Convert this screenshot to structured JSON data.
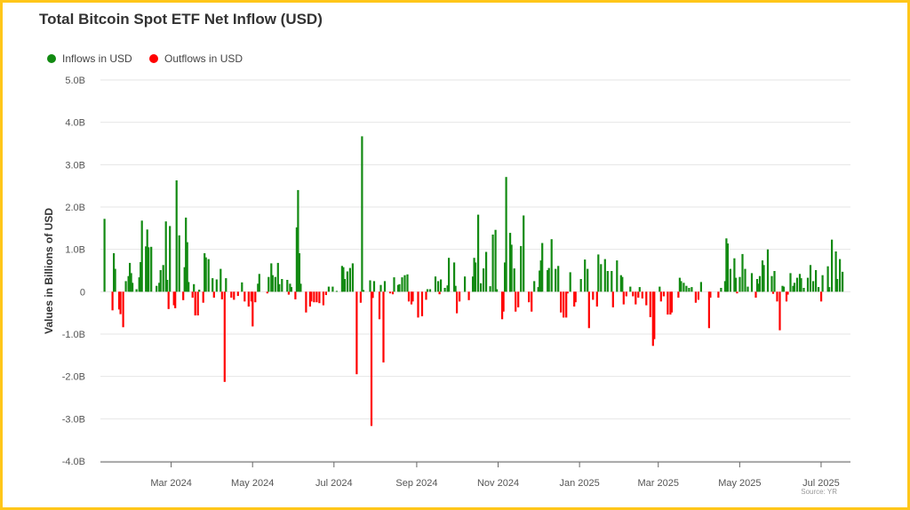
{
  "chart_data": {
    "type": "bar",
    "title": "Total Bitcoin Spot ETF Net Inflow (USD)",
    "xlabel": "",
    "ylabel": "Values in Billions of USD",
    "ylim": [
      -4,
      5
    ],
    "xlim": [
      "2024-01-08",
      "2025-07-23"
    ],
    "grid": true,
    "legend_placement": "top-left",
    "source": "Source: YR",
    "colors": {
      "inflow": "#128A12",
      "outflow": "#FF0000",
      "grid": "#e6e6e6",
      "border": "#FFC61A"
    },
    "legend": [
      {
        "label": "Inflows in USD",
        "color": "#128A12"
      },
      {
        "label": "Outflows in USD",
        "color": "#FF0000"
      }
    ],
    "y_ticks": [
      {
        "value": 5,
        "label": "5.0B"
      },
      {
        "value": 4,
        "label": "4.0B"
      },
      {
        "value": 3,
        "label": "3.0B"
      },
      {
        "value": 2,
        "label": "2.0B"
      },
      {
        "value": 1,
        "label": "1.0B"
      },
      {
        "value": 0,
        "label": "0"
      },
      {
        "value": -1,
        "label": "-1.0B"
      },
      {
        "value": -2,
        "label": "-2.0B"
      },
      {
        "value": -3,
        "label": "-3.0B"
      },
      {
        "value": -4,
        "label": "-4.0B"
      }
    ],
    "x_ticks": [
      {
        "date": "2024-03-01",
        "label": "Mar 2024"
      },
      {
        "date": "2024-05-01",
        "label": "May 2024"
      },
      {
        "date": "2024-07-01",
        "label": "Jul 2024"
      },
      {
        "date": "2024-09-01",
        "label": "Sep 2024"
      },
      {
        "date": "2024-11-01",
        "label": "Nov 2024"
      },
      {
        "date": "2025-01-01",
        "label": "Jan 2025"
      },
      {
        "date": "2025-03-01",
        "label": "Mar 2025"
      },
      {
        "date": "2025-05-01",
        "label": "May 2025"
      },
      {
        "date": "2025-07-01",
        "label": "Jul 2025"
      }
    ],
    "series_unit": "billion USD",
    "points": [
      [
        "2024-01-11",
        1.72
      ],
      [
        "2024-01-17",
        -0.44
      ],
      [
        "2024-01-18",
        0.91
      ],
      [
        "2024-01-19",
        0.54
      ],
      [
        "2024-01-22",
        -0.42
      ],
      [
        "2024-01-23",
        -0.53
      ],
      [
        "2024-01-25",
        -0.84
      ],
      [
        "2024-01-27",
        0.25
      ],
      [
        "2024-01-29",
        0.37
      ],
      [
        "2024-01-30",
        0.68
      ],
      [
        "2024-01-31",
        0.44
      ],
      [
        "2024-02-01",
        0.21
      ],
      [
        "2024-02-04",
        0.06
      ],
      [
        "2024-02-06",
        0.34
      ],
      [
        "2024-02-07",
        0.7
      ],
      [
        "2024-02-08",
        1.68
      ],
      [
        "2024-02-11",
        1.07
      ],
      [
        "2024-02-12",
        1.47
      ],
      [
        "2024-02-13",
        1.05
      ],
      [
        "2024-02-15",
        1.06
      ],
      [
        "2024-02-19",
        0.14
      ],
      [
        "2024-02-21",
        0.21
      ],
      [
        "2024-02-22",
        0.51
      ],
      [
        "2024-02-24",
        0.63
      ],
      [
        "2024-02-26",
        1.66
      ],
      [
        "2024-02-27",
        0.28
      ],
      [
        "2024-02-28",
        -0.41
      ],
      [
        "2024-02-29",
        1.55
      ],
      [
        "2024-03-03",
        -0.32
      ],
      [
        "2024-03-04",
        -0.39
      ],
      [
        "2024-03-05",
        2.63
      ],
      [
        "2024-03-07",
        1.33
      ],
      [
        "2024-03-10",
        -0.2
      ],
      [
        "2024-03-11",
        0.58
      ],
      [
        "2024-03-12",
        1.75
      ],
      [
        "2024-03-13",
        1.17
      ],
      [
        "2024-03-14",
        0.23
      ],
      [
        "2024-03-17",
        -0.14
      ],
      [
        "2024-03-18",
        0.18
      ],
      [
        "2024-03-19",
        -0.56
      ],
      [
        "2024-03-21",
        -0.56
      ],
      [
        "2024-03-22",
        0.05
      ],
      [
        "2024-03-25",
        -0.26
      ],
      [
        "2024-03-26",
        0.91
      ],
      [
        "2024-03-27",
        0.81
      ],
      [
        "2024-03-29",
        0.77
      ],
      [
        "2024-04-01",
        0.32
      ],
      [
        "2024-04-02",
        -0.14
      ],
      [
        "2024-04-04",
        0.29
      ],
      [
        "2024-04-07",
        0.54
      ],
      [
        "2024-04-08",
        -0.18
      ],
      [
        "2024-04-10",
        -2.13
      ],
      [
        "2024-04-11",
        0.32
      ],
      [
        "2024-04-15",
        -0.14
      ],
      [
        "2024-04-17",
        -0.19
      ],
      [
        "2024-04-20",
        -0.1
      ],
      [
        "2024-04-23",
        0.22
      ],
      [
        "2024-04-25",
        -0.23
      ],
      [
        "2024-04-28",
        -0.35
      ],
      [
        "2024-04-30",
        -0.23
      ],
      [
        "2024-05-01",
        -0.82
      ],
      [
        "2024-05-03",
        -0.25
      ],
      [
        "2024-05-05",
        0.19
      ],
      [
        "2024-05-06",
        0.42
      ],
      [
        "2024-05-12",
        -0.04
      ],
      [
        "2024-05-13",
        0.35
      ],
      [
        "2024-05-15",
        0.67
      ],
      [
        "2024-05-16",
        0.39
      ],
      [
        "2024-05-18",
        0.35
      ],
      [
        "2024-05-20",
        0.68
      ],
      [
        "2024-05-21",
        0.18
      ],
      [
        "2024-05-23",
        0.3
      ],
      [
        "2024-05-27",
        0.28
      ],
      [
        "2024-05-28",
        -0.07
      ],
      [
        "2024-05-29",
        0.19
      ],
      [
        "2024-05-30",
        0.11
      ],
      [
        "2024-06-02",
        -0.18
      ],
      [
        "2024-06-03",
        1.52
      ],
      [
        "2024-06-04",
        2.4
      ],
      [
        "2024-06-05",
        0.91
      ],
      [
        "2024-06-06",
        0.19
      ],
      [
        "2024-06-10",
        -0.49
      ],
      [
        "2024-06-13",
        -0.35
      ],
      [
        "2024-06-14",
        -0.23
      ],
      [
        "2024-06-16",
        -0.25
      ],
      [
        "2024-06-18",
        -0.25
      ],
      [
        "2024-06-20",
        -0.27
      ],
      [
        "2024-06-23",
        -0.32
      ],
      [
        "2024-06-25",
        -0.08
      ],
      [
        "2024-06-27",
        0.12
      ],
      [
        "2024-06-30",
        0.12
      ],
      [
        "2024-07-03",
        0.02
      ],
      [
        "2024-07-07",
        0.61
      ],
      [
        "2024-07-08",
        0.58
      ],
      [
        "2024-07-09",
        0.3
      ],
      [
        "2024-07-11",
        0.48
      ],
      [
        "2024-07-13",
        0.56
      ],
      [
        "2024-07-15",
        0.67
      ],
      [
        "2024-07-18",
        -1.95
      ],
      [
        "2024-07-21",
        -0.26
      ],
      [
        "2024-07-22",
        3.67
      ],
      [
        "2024-07-23",
        0.04
      ],
      [
        "2024-07-28",
        0.27
      ],
      [
        "2024-07-29",
        -3.17
      ],
      [
        "2024-07-30",
        -0.15
      ],
      [
        "2024-07-31",
        0.25
      ],
      [
        "2024-08-04",
        -0.65
      ],
      [
        "2024-08-05",
        0.16
      ],
      [
        "2024-08-07",
        -1.67
      ],
      [
        "2024-08-08",
        0.25
      ],
      [
        "2024-08-12",
        -0.04
      ],
      [
        "2024-08-14",
        -0.06
      ],
      [
        "2024-08-15",
        0.34
      ],
      [
        "2024-08-18",
        0.16
      ],
      [
        "2024-08-19",
        0.18
      ],
      [
        "2024-08-21",
        0.34
      ],
      [
        "2024-08-23",
        0.39
      ],
      [
        "2024-08-25",
        0.41
      ],
      [
        "2024-08-26",
        -0.23
      ],
      [
        "2024-08-28",
        -0.3
      ],
      [
        "2024-08-29",
        -0.23
      ],
      [
        "2024-09-02",
        -0.61
      ],
      [
        "2024-09-05",
        -0.58
      ],
      [
        "2024-09-08",
        -0.19
      ],
      [
        "2024-09-09",
        0.06
      ],
      [
        "2024-09-11",
        0.06
      ],
      [
        "2024-09-15",
        0.36
      ],
      [
        "2024-09-17",
        0.25
      ],
      [
        "2024-09-18",
        -0.06
      ],
      [
        "2024-09-19",
        0.29
      ],
      [
        "2024-09-22",
        0.09
      ],
      [
        "2024-09-24",
        0.15
      ],
      [
        "2024-09-25",
        0.8
      ],
      [
        "2024-09-29",
        0.69
      ],
      [
        "2024-09-30",
        0.14
      ],
      [
        "2024-10-01",
        -0.51
      ],
      [
        "2024-10-03",
        -0.23
      ],
      [
        "2024-10-07",
        0.36
      ],
      [
        "2024-10-10",
        -0.2
      ],
      [
        "2024-10-13",
        0.36
      ],
      [
        "2024-10-14",
        0.8
      ],
      [
        "2024-10-15",
        0.69
      ],
      [
        "2024-10-17",
        1.82
      ],
      [
        "2024-10-19",
        0.2
      ],
      [
        "2024-10-21",
        0.55
      ],
      [
        "2024-10-23",
        0.94
      ],
      [
        "2024-10-26",
        0.13
      ],
      [
        "2024-10-28",
        1.35
      ],
      [
        "2024-10-30",
        1.46
      ],
      [
        "2024-10-31",
        0.06
      ],
      [
        "2024-11-04",
        -0.65
      ],
      [
        "2024-11-05",
        -0.47
      ],
      [
        "2024-11-06",
        0.69
      ],
      [
        "2024-11-07",
        2.71
      ],
      [
        "2024-11-10",
        1.39
      ],
      [
        "2024-11-11",
        1.11
      ],
      [
        "2024-11-13",
        0.55
      ],
      [
        "2024-11-14",
        -0.47
      ],
      [
        "2024-11-16",
        -0.37
      ],
      [
        "2024-11-18",
        1.08
      ],
      [
        "2024-11-20",
        1.8
      ],
      [
        "2024-11-24",
        -0.25
      ],
      [
        "2024-11-26",
        -0.47
      ],
      [
        "2024-11-28",
        0.25
      ],
      [
        "2024-12-01",
        0.11
      ],
      [
        "2024-12-02",
        0.5
      ],
      [
        "2024-12-03",
        0.74
      ],
      [
        "2024-12-04",
        1.15
      ],
      [
        "2024-12-08",
        0.51
      ],
      [
        "2024-12-09",
        0.56
      ],
      [
        "2024-12-11",
        1.24
      ],
      [
        "2024-12-14",
        0.54
      ],
      [
        "2024-12-16",
        0.61
      ],
      [
        "2024-12-18",
        -0.49
      ],
      [
        "2024-12-20",
        -0.61
      ],
      [
        "2024-12-22",
        -0.61
      ],
      [
        "2024-12-23",
        -0.04
      ],
      [
        "2024-12-25",
        0.46
      ],
      [
        "2024-12-28",
        -0.35
      ],
      [
        "2024-12-29",
        -0.25
      ],
      [
        "2025-01-02",
        0.3
      ],
      [
        "2025-01-05",
        0.76
      ],
      [
        "2025-01-07",
        0.54
      ],
      [
        "2025-01-08",
        -0.86
      ],
      [
        "2025-01-11",
        -0.19
      ],
      [
        "2025-01-14",
        -0.35
      ],
      [
        "2025-01-15",
        0.88
      ],
      [
        "2025-01-17",
        0.65
      ],
      [
        "2025-01-20",
        0.77
      ],
      [
        "2025-01-22",
        0.49
      ],
      [
        "2025-01-25",
        0.49
      ],
      [
        "2025-01-26",
        -0.37
      ],
      [
        "2025-01-29",
        0.74
      ],
      [
        "2025-02-01",
        0.39
      ],
      [
        "2025-02-02",
        0.35
      ],
      [
        "2025-02-03",
        -0.3
      ],
      [
        "2025-02-05",
        -0.11
      ],
      [
        "2025-02-08",
        0.12
      ],
      [
        "2025-02-10",
        -0.11
      ],
      [
        "2025-02-12",
        -0.3
      ],
      [
        "2025-02-14",
        -0.14
      ],
      [
        "2025-02-15",
        0.11
      ],
      [
        "2025-02-17",
        -0.16
      ],
      [
        "2025-02-20",
        -0.32
      ],
      [
        "2025-02-23",
        -0.6
      ],
      [
        "2025-02-25",
        -1.28
      ],
      [
        "2025-02-26",
        -1.12
      ],
      [
        "2025-03-02",
        0.12
      ],
      [
        "2025-03-03",
        -0.23
      ],
      [
        "2025-03-05",
        -0.11
      ],
      [
        "2025-03-08",
        -0.54
      ],
      [
        "2025-03-10",
        -0.54
      ],
      [
        "2025-03-11",
        -0.49
      ],
      [
        "2025-03-16",
        -0.14
      ],
      [
        "2025-03-17",
        0.33
      ],
      [
        "2025-03-18",
        0.25
      ],
      [
        "2025-03-20",
        0.21
      ],
      [
        "2025-03-22",
        0.14
      ],
      [
        "2025-03-24",
        0.09
      ],
      [
        "2025-03-26",
        0.11
      ],
      [
        "2025-03-29",
        -0.26
      ],
      [
        "2025-03-31",
        -0.19
      ],
      [
        "2025-04-02",
        0.23
      ],
      [
        "2025-04-08",
        -0.86
      ],
      [
        "2025-04-09",
        -0.14
      ],
      [
        "2025-04-15",
        -0.14
      ],
      [
        "2025-04-17",
        0.09
      ],
      [
        "2025-04-20",
        0.25
      ],
      [
        "2025-04-21",
        1.26
      ],
      [
        "2025-04-22",
        1.14
      ],
      [
        "2025-04-24",
        0.54
      ],
      [
        "2025-04-27",
        0.79
      ],
      [
        "2025-04-28",
        0.33
      ],
      [
        "2025-04-29",
        -0.04
      ],
      [
        "2025-05-01",
        0.35
      ],
      [
        "2025-05-03",
        0.89
      ],
      [
        "2025-05-05",
        0.54
      ],
      [
        "2025-05-07",
        0.12
      ],
      [
        "2025-05-10",
        0.44
      ],
      [
        "2025-05-13",
        -0.14
      ],
      [
        "2025-05-14",
        0.3
      ],
      [
        "2025-05-15",
        0.19
      ],
      [
        "2025-05-16",
        0.37
      ],
      [
        "2025-05-18",
        0.74
      ],
      [
        "2025-05-19",
        0.63
      ],
      [
        "2025-05-22",
        1.0
      ],
      [
        "2025-05-25",
        0.37
      ],
      [
        "2025-05-26",
        -0.05
      ],
      [
        "2025-05-27",
        0.49
      ],
      [
        "2025-05-29",
        -0.23
      ],
      [
        "2025-05-31",
        -0.91
      ],
      [
        "2025-06-02",
        0.14
      ],
      [
        "2025-06-03",
        0.12
      ],
      [
        "2025-06-05",
        -0.23
      ],
      [
        "2025-06-06",
        -0.07
      ],
      [
        "2025-06-08",
        0.44
      ],
      [
        "2025-06-10",
        0.14
      ],
      [
        "2025-06-11",
        0.21
      ],
      [
        "2025-06-13",
        0.33
      ],
      [
        "2025-06-15",
        0.42
      ],
      [
        "2025-06-16",
        0.32
      ],
      [
        "2025-06-18",
        0.09
      ],
      [
        "2025-06-21",
        0.33
      ],
      [
        "2025-06-23",
        0.63
      ],
      [
        "2025-06-25",
        0.25
      ],
      [
        "2025-06-27",
        0.51
      ],
      [
        "2025-06-29",
        0.11
      ],
      [
        "2025-07-01",
        -0.23
      ],
      [
        "2025-07-02",
        0.39
      ],
      [
        "2025-07-06",
        0.6
      ],
      [
        "2025-07-07",
        0.11
      ],
      [
        "2025-07-09",
        1.23
      ],
      [
        "2025-07-12",
        0.95
      ],
      [
        "2025-07-13",
        0.3
      ],
      [
        "2025-07-15",
        0.77
      ],
      [
        "2025-07-17",
        0.47
      ]
    ]
  }
}
